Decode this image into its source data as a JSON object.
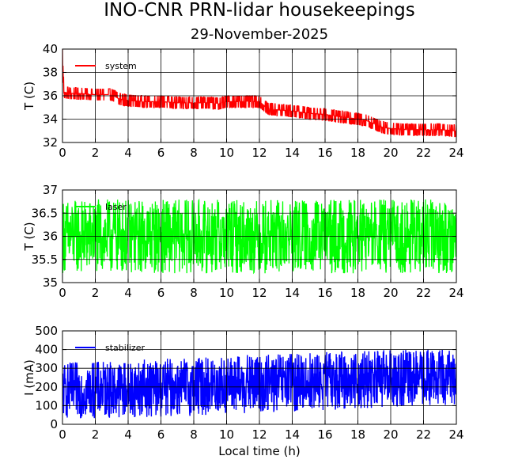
{
  "title": "INO-CNR PRN-lidar housekeepings",
  "subtitle": "29-November-2025",
  "xlabel": "Local time (h)",
  "chart_data": [
    {
      "type": "line",
      "ylabel": "T (C)",
      "xlim": [
        0,
        24
      ],
      "ylim": [
        32,
        40
      ],
      "xticks": [
        "0",
        "2",
        "4",
        "6",
        "8",
        "10",
        "12",
        "14",
        "16",
        "18",
        "20",
        "22",
        "24"
      ],
      "yticks": [
        "32",
        "34",
        "36",
        "38",
        "40"
      ],
      "grid": true,
      "legend_position": "top-left",
      "series": [
        {
          "name": "system",
          "color": "#ff0000",
          "x": [
            0,
            0.1,
            0.5,
            1,
            2,
            3,
            3.5,
            4,
            5,
            6,
            7,
            8,
            9,
            9.5,
            10,
            11,
            12,
            12.5,
            13,
            14,
            15,
            16,
            17,
            18,
            18.5,
            19,
            19.5,
            20,
            21,
            22,
            23,
            24
          ],
          "y": [
            39,
            36.3,
            36.2,
            36.2,
            36.1,
            36.1,
            35.7,
            35.6,
            35.5,
            35.5,
            35.4,
            35.4,
            35.4,
            35.3,
            35.5,
            35.5,
            35.5,
            34.9,
            34.8,
            34.7,
            34.5,
            34.4,
            34.2,
            34,
            33.9,
            33.6,
            33.3,
            33.2,
            33.1,
            33.1,
            33.1,
            33
          ],
          "noise": [
            2.0,
            0.4,
            0.4,
            0.4,
            0.4,
            0.4,
            0.5,
            0.5,
            0.5,
            0.5,
            0.5,
            0.5,
            0.5,
            0.6,
            0.6,
            0.6,
            0.6,
            0.5,
            0.5,
            0.5,
            0.5,
            0.5,
            0.5,
            0.5,
            0.5,
            0.6,
            0.6,
            0.6,
            0.6,
            0.6,
            0.6,
            0.6
          ]
        }
      ]
    },
    {
      "type": "line",
      "ylabel": "T (C)",
      "xlim": [
        0,
        24
      ],
      "ylim": [
        35,
        37
      ],
      "xticks": [
        "0",
        "2",
        "4",
        "6",
        "8",
        "10",
        "12",
        "14",
        "16",
        "18",
        "20",
        "22",
        "24"
      ],
      "yticks": [
        "35",
        "35.5",
        "36",
        "36.5",
        "37"
      ],
      "grid": true,
      "legend_position": "top-left",
      "series": [
        {
          "name": "laser",
          "color": "#00ff00",
          "x": [
            0,
            24
          ],
          "y": [
            36.0,
            36.0
          ],
          "noise": [
            0.8,
            0.8
          ]
        }
      ]
    },
    {
      "type": "line",
      "ylabel": "I (mA)",
      "xlim": [
        0,
        24
      ],
      "ylim": [
        0,
        500
      ],
      "xticks": [
        "0",
        "2",
        "4",
        "6",
        "8",
        "10",
        "12",
        "14",
        "16",
        "18",
        "20",
        "22",
        "24"
      ],
      "yticks": [
        "0",
        "100",
        "200",
        "300",
        "400",
        "500"
      ],
      "grid": true,
      "legend_position": "top-left",
      "series": [
        {
          "name": "stabilizer",
          "color": "#0000ff",
          "x": [
            0,
            6,
            12,
            18,
            24
          ],
          "y": [
            180,
            195,
            215,
            240,
            255
          ],
          "noise": [
            150,
            155,
            160,
            155,
            150
          ]
        }
      ]
    }
  ]
}
